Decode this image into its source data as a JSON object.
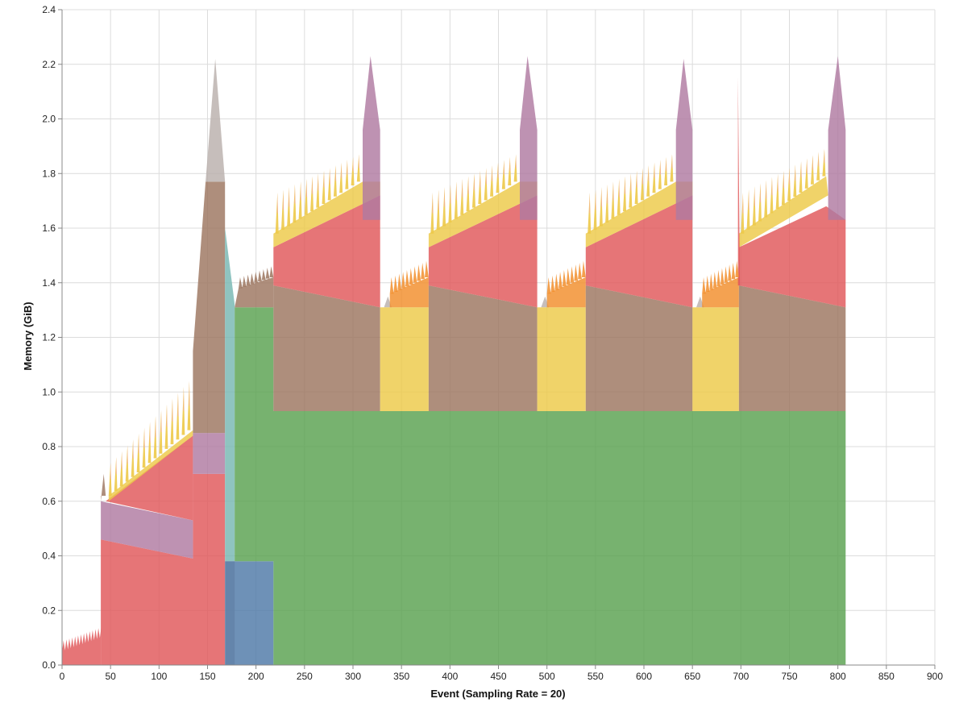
{
  "chart_data": {
    "type": "area",
    "stacked": true,
    "xlabel": "Event (Sampling Rate = 20)",
    "ylabel": "Memory (GiB)",
    "xlim": [
      0,
      900
    ],
    "ylim": [
      0,
      2.4
    ],
    "xticks": [
      0,
      50,
      100,
      150,
      200,
      250,
      300,
      350,
      400,
      450,
      500,
      550,
      600,
      650,
      700,
      750,
      800,
      850,
      900
    ],
    "yticks": [
      "0.0",
      "0.2",
      "0.4",
      "0.6",
      "0.8",
      "1.0",
      "1.2",
      "1.4",
      "1.6",
      "1.8",
      "2.0",
      "2.2",
      "2.4"
    ],
    "grid": true,
    "legend": "none",
    "colors": {
      "green": "#59a14f",
      "blue": "#4e79a7",
      "teal": "#76b7b2",
      "red": "#e15759",
      "purple": "#b07aa1",
      "brown": "#9c755f",
      "yellow": "#edc948",
      "orange": "#f28e2b",
      "gray": "#bab0ac"
    },
    "series_note_free": true,
    "regions": [
      {
        "color": "red",
        "points": [
          [
            0,
            0
          ],
          [
            10,
            0.05
          ],
          [
            20,
            0.06
          ],
          [
            30,
            0.08
          ],
          [
            39,
            0.09
          ],
          [
            40,
            0.1
          ]
        ],
        "jagged": {
          "from": 0,
          "to": 40,
          "amp": 0.04,
          "step": 3
        }
      },
      {
        "color": "red",
        "poly": [
          [
            40,
            0
          ],
          [
            40,
            0.46
          ],
          [
            135,
            0.39
          ],
          [
            135,
            0.7
          ],
          [
            168,
            0.7
          ],
          [
            168,
            0
          ]
        ]
      },
      {
        "color": "purple",
        "poly": [
          [
            40,
            0.46
          ],
          [
            40,
            0.6
          ],
          [
            135,
            0.53
          ],
          [
            135,
            0.39
          ]
        ]
      },
      {
        "color": "brown",
        "poly": [
          [
            40,
            0.6
          ],
          [
            43,
            0.7
          ],
          [
            45,
            0.62
          ],
          [
            40,
            0.62
          ]
        ]
      },
      {
        "color": "red",
        "poly": [
          [
            45,
            0.6
          ],
          [
            135,
            0.84
          ],
          [
            135,
            0.53
          ],
          [
            45,
            0.6
          ]
        ]
      },
      {
        "color": "yellow",
        "poly": [
          [
            48,
            0.62
          ],
          [
            135,
            0.86
          ],
          [
            135,
            0.84
          ],
          [
            48,
            0.6
          ]
        ]
      },
      {
        "color": "purple",
        "poly": [
          [
            135,
            0.7
          ],
          [
            135,
            0.85
          ],
          [
            168,
            0.85
          ],
          [
            168,
            0.7
          ]
        ]
      },
      {
        "color": "brown",
        "poly": [
          [
            135,
            0.85
          ],
          [
            135,
            1.15
          ],
          [
            148,
            1.77
          ],
          [
            168,
            1.77
          ],
          [
            168,
            0.85
          ]
        ]
      },
      {
        "color": "gray",
        "poly": [
          [
            148,
            1.77
          ],
          [
            158,
            2.22
          ],
          [
            168,
            1.77
          ]
        ]
      },
      {
        "color": "gray",
        "poly": [
          [
            168,
            0
          ],
          [
            168,
            0.38
          ],
          [
            178,
            0.38
          ],
          [
            178,
            0
          ]
        ]
      },
      {
        "color": "teal",
        "poly": [
          [
            168,
            0.38
          ],
          [
            168,
            1.6
          ],
          [
            178,
            1.32
          ],
          [
            178,
            0.38
          ]
        ]
      },
      {
        "color": "blue",
        "poly": [
          [
            168,
            0
          ],
          [
            168,
            0.38
          ],
          [
            218,
            0.38
          ],
          [
            218,
            0
          ]
        ]
      },
      {
        "color": "green",
        "poly": [
          [
            178,
            0.38
          ],
          [
            178,
            1.31
          ],
          [
            218,
            1.31
          ],
          [
            218,
            0.93
          ],
          [
            808,
            0.93
          ],
          [
            808,
            0
          ],
          [
            218,
            0
          ],
          [
            218,
            0.38
          ]
        ]
      },
      {
        "color": "brown",
        "poly": [
          [
            178,
            1.31
          ],
          [
            182,
            1.38
          ],
          [
            218,
            1.42
          ],
          [
            218,
            1.31
          ]
        ]
      },
      {
        "color": "brown",
        "poly": [
          [
            218,
            0.93
          ],
          [
            218,
            1.39
          ],
          [
            328,
            1.31
          ],
          [
            328,
            0.93
          ]
        ]
      },
      {
        "color": "red",
        "poly": [
          [
            218,
            1.39
          ],
          [
            218,
            1.53
          ],
          [
            328,
            1.72
          ],
          [
            328,
            1.31
          ]
        ]
      },
      {
        "color": "yellow",
        "poly": [
          [
            218,
            1.53
          ],
          [
            218,
            1.58
          ],
          [
            310,
            1.77
          ],
          [
            328,
            1.77
          ],
          [
            328,
            1.72
          ]
        ]
      },
      {
        "color": "purple",
        "poly": [
          [
            310,
            1.63
          ],
          [
            310,
            1.96
          ],
          [
            318,
            2.23
          ],
          [
            328,
            1.96
          ],
          [
            328,
            1.63
          ]
        ]
      },
      {
        "color": "gray",
        "poly": [
          [
            328,
            1.31
          ],
          [
            332,
            1.31
          ],
          [
            336,
            1.35
          ],
          [
            340,
            1.31
          ]
        ]
      },
      {
        "color": "yellow",
        "poly": [
          [
            328,
            0.93
          ],
          [
            328,
            1.31
          ],
          [
            378,
            1.31
          ],
          [
            378,
            0.93
          ]
        ]
      },
      {
        "color": "orange",
        "poly": [
          [
            338,
            1.31
          ],
          [
            338,
            1.36
          ],
          [
            378,
            1.42
          ],
          [
            378,
            1.31
          ]
        ]
      },
      {
        "color": "brown",
        "poly": [
          [
            378,
            0.93
          ],
          [
            378,
            1.39
          ],
          [
            490,
            1.31
          ],
          [
            490,
            0.93
          ]
        ]
      },
      {
        "color": "red",
        "poly": [
          [
            378,
            1.39
          ],
          [
            378,
            1.53
          ],
          [
            490,
            1.72
          ],
          [
            490,
            1.31
          ]
        ]
      },
      {
        "color": "yellow",
        "poly": [
          [
            378,
            1.53
          ],
          [
            378,
            1.58
          ],
          [
            472,
            1.77
          ],
          [
            490,
            1.77
          ],
          [
            490,
            1.72
          ]
        ]
      },
      {
        "color": "purple",
        "poly": [
          [
            472,
            1.63
          ],
          [
            472,
            1.96
          ],
          [
            480,
            2.23
          ],
          [
            490,
            1.96
          ],
          [
            490,
            1.63
          ]
        ]
      },
      {
        "color": "gray",
        "poly": [
          [
            490,
            1.31
          ],
          [
            494,
            1.31
          ],
          [
            498,
            1.35
          ],
          [
            502,
            1.31
          ]
        ]
      },
      {
        "color": "yellow",
        "poly": [
          [
            490,
            0.93
          ],
          [
            490,
            1.31
          ],
          [
            540,
            1.31
          ],
          [
            540,
            0.93
          ]
        ]
      },
      {
        "color": "orange",
        "poly": [
          [
            500,
            1.31
          ],
          [
            500,
            1.36
          ],
          [
            540,
            1.42
          ],
          [
            540,
            1.31
          ]
        ]
      },
      {
        "color": "brown",
        "poly": [
          [
            540,
            0.93
          ],
          [
            540,
            1.39
          ],
          [
            650,
            1.31
          ],
          [
            650,
            0.93
          ]
        ]
      },
      {
        "color": "red",
        "poly": [
          [
            540,
            1.39
          ],
          [
            540,
            1.53
          ],
          [
            650,
            1.72
          ],
          [
            650,
            1.31
          ]
        ]
      },
      {
        "color": "yellow",
        "poly": [
          [
            540,
            1.53
          ],
          [
            540,
            1.58
          ],
          [
            633,
            1.77
          ],
          [
            650,
            1.77
          ],
          [
            650,
            1.72
          ]
        ]
      },
      {
        "color": "purple",
        "poly": [
          [
            633,
            1.63
          ],
          [
            633,
            1.96
          ],
          [
            641,
            2.22
          ],
          [
            650,
            1.96
          ],
          [
            650,
            1.63
          ]
        ]
      },
      {
        "color": "gray",
        "poly": [
          [
            650,
            1.31
          ],
          [
            654,
            1.31
          ],
          [
            658,
            1.35
          ],
          [
            662,
            1.31
          ]
        ]
      },
      {
        "color": "yellow",
        "poly": [
          [
            650,
            0.93
          ],
          [
            650,
            1.31
          ],
          [
            698,
            1.31
          ],
          [
            698,
            0.93
          ]
        ]
      },
      {
        "color": "orange",
        "poly": [
          [
            660,
            1.31
          ],
          [
            660,
            1.36
          ],
          [
            698,
            1.42
          ],
          [
            698,
            1.31
          ]
        ]
      },
      {
        "color": "brown",
        "poly": [
          [
            698,
            0.93
          ],
          [
            698,
            1.39
          ],
          [
            808,
            1.31
          ],
          [
            808,
            0.93
          ]
        ]
      },
      {
        "color": "red",
        "poly": [
          [
            698,
            1.39
          ],
          [
            698,
            1.53
          ],
          [
            788,
            1.68
          ],
          [
            808,
            1.63
          ],
          [
            808,
            1.31
          ]
        ]
      },
      {
        "color": "yellow",
        "poly": [
          [
            698,
            1.53
          ],
          [
            698,
            1.58
          ],
          [
            788,
            1.79
          ],
          [
            790,
            1.72
          ]
        ]
      },
      {
        "color": "purple",
        "poly": [
          [
            790,
            1.63
          ],
          [
            790,
            1.96
          ],
          [
            800,
            2.23
          ],
          [
            808,
            1.96
          ],
          [
            808,
            1.63
          ]
        ]
      },
      {
        "color": "red",
        "poly": [
          [
            697,
            1.39
          ],
          [
            697,
            2.15
          ],
          [
            699,
            1.39
          ]
        ]
      }
    ],
    "spikes": [
      {
        "from": 48,
        "to": 135,
        "base_start": 0.62,
        "base_end": 0.86,
        "amp_start": 0.12,
        "amp_end": 0.18,
        "count": 15
      },
      {
        "from": 220,
        "to": 310,
        "base_start": 1.58,
        "base_end": 1.77,
        "amp_start": 0.15,
        "amp_end": 0.1,
        "count": 15
      },
      {
        "from": 380,
        "to": 472,
        "base_start": 1.58,
        "base_end": 1.77,
        "amp_start": 0.15,
        "amp_end": 0.1,
        "count": 15
      },
      {
        "from": 542,
        "to": 633,
        "base_start": 1.58,
        "base_end": 1.77,
        "amp_start": 0.15,
        "amp_end": 0.1,
        "count": 15
      },
      {
        "from": 700,
        "to": 790,
        "base_start": 1.58,
        "base_end": 1.79,
        "amp_start": 0.15,
        "amp_end": 0.1,
        "count": 15
      }
    ],
    "orange_spikes": [
      {
        "from": 338,
        "to": 378,
        "base_start": 1.36,
        "base_end": 1.42,
        "amp": 0.06,
        "count": 10
      },
      {
        "from": 500,
        "to": 540,
        "base_start": 1.36,
        "base_end": 1.42,
        "amp": 0.06,
        "count": 10
      },
      {
        "from": 660,
        "to": 698,
        "base_start": 1.36,
        "base_end": 1.42,
        "amp": 0.06,
        "count": 10
      },
      {
        "from": 182,
        "to": 218,
        "base_start": 1.38,
        "base_end": 1.42,
        "amp": 0.04,
        "count": 9,
        "color": "brown"
      }
    ]
  }
}
